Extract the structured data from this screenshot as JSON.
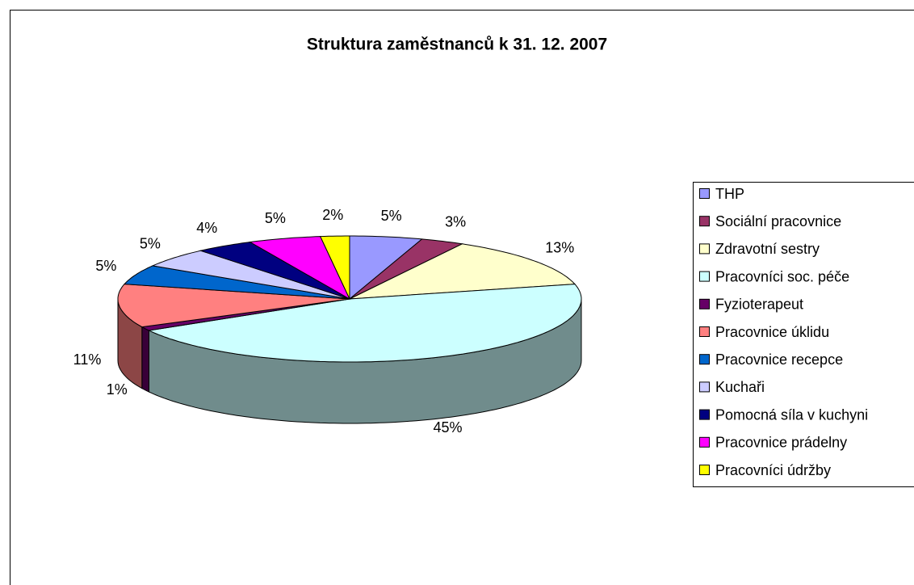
{
  "chart_data": {
    "type": "pie3d",
    "title": "Struktura zaměstnanců k 31. 12. 2007",
    "categories": [
      "THP",
      "Sociální pracovnice",
      "Zdravotní sestry",
      "Pracovníci soc. péče",
      "Fyzioterapeut",
      "Pracovnice úklidu",
      "Pracovnice recepce",
      "Kuchaři",
      "Pomocná síla v kuchyni",
      "Pracovnice prádelny",
      "Pracovníci údržby"
    ],
    "values": [
      5,
      3,
      13,
      45,
      1,
      11,
      5,
      5,
      4,
      5,
      2
    ],
    "value_labels": [
      "5%",
      "3%",
      "13%",
      "45%",
      "1%",
      "11%",
      "5%",
      "5%",
      "4%",
      "5%",
      "2%"
    ],
    "colors": [
      "#9999ff",
      "#993366",
      "#ffffcc",
      "#ccffff",
      "#660066",
      "#ff8080",
      "#0066cc",
      "#ccccff",
      "#000080",
      "#ff00ff",
      "#ffff00"
    ],
    "legend": "right"
  }
}
